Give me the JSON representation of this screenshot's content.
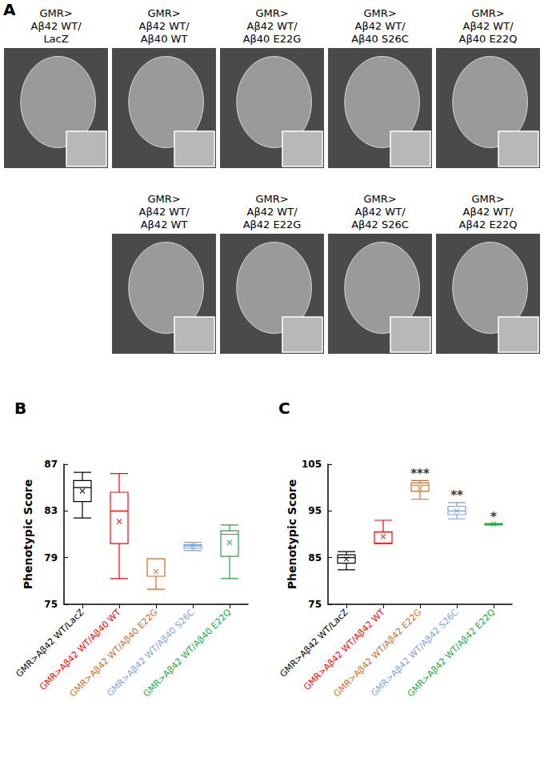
{
  "images": {
    "panel_label": "A",
    "rows": [
      [
        [
          "GMR>",
          "Aβ42 WT/",
          "LacZ"
        ],
        [
          "GMR>",
          "Aβ42 WT/",
          "Aβ40 WT"
        ],
        [
          "GMR>",
          "Aβ42 WT/",
          "Aβ40 E22G"
        ],
        [
          "GMR>",
          "Aβ42 WT/",
          "Aβ40 S26C"
        ],
        [
          "GMR>",
          "Aβ42 WT/",
          "Aβ40 E22Q"
        ]
      ],
      [
        [
          "GMR>",
          "Aβ42 WT/",
          "Aβ42 WT"
        ],
        [
          "GMR>",
          "Aβ42 WT/",
          "Aβ42 E22G"
        ],
        [
          "GMR>",
          "Aβ42 WT/",
          "Aβ42 S26C"
        ],
        [
          "GMR>",
          "Aβ42 WT/",
          "Aβ42 E22Q"
        ]
      ]
    ]
  },
  "chart_data": [
    {
      "type": "boxplot",
      "panel_label": "B",
      "ylabel": "Phenotypic Score",
      "categories": [
        "GMR>Aβ42 WT/LacZ",
        "GMR>Aβ42 WT/Aβ40 WT",
        "GMR>Aβ42 WT/Aβ40 E22G",
        "GMR>Aβ42 WT/Aβ40 S26C",
        "GMR>Aβ42 WT/Aβ40 E22Q"
      ],
      "colors": [
        "#000000",
        "#ff0000",
        "#d2691e",
        "#7f9fd8",
        "#1aaa3a"
      ],
      "min": [
        82.4,
        77.2,
        76.3,
        79.6,
        77.2
      ],
      "q1": [
        83.8,
        80.2,
        77.4,
        79.8,
        79.1
      ],
      "median": [
        85.0,
        83.0,
        78.9,
        80.0,
        81.0
      ],
      "q3": [
        85.6,
        84.6,
        78.9,
        80.1,
        81.3
      ],
      "max": [
        86.3,
        86.2,
        78.9,
        80.3,
        81.8
      ],
      "mean": [
        84.7,
        82.1,
        77.8,
        80.0,
        80.3
      ],
      "ylim": [
        75,
        87
      ],
      "yticks": [
        75,
        79,
        83,
        87
      ]
    },
    {
      "type": "boxplot",
      "panel_label": "C",
      "ylabel": "Phenotypic Score",
      "categories": [
        "GMR>Aβ42 WT/LacZ",
        "GMR>Aβ42 WT/Aβ42 WT",
        "GMR>Aβ42 WT/Aβ42 E22G",
        "GMR>Aβ42 WT/Aβ42 S26C",
        "GMR>Aβ42 WT/Aβ42 E22Q"
      ],
      "colors": [
        "#000000",
        "#ff0000",
        "#d2691e",
        "#7f9fd8",
        "#1aaa3a"
      ],
      "min": [
        82.4,
        88.0,
        97.5,
        93.3,
        92.0
      ],
      "q1": [
        83.8,
        88.0,
        99.2,
        94.2,
        92.0
      ],
      "median": [
        85.0,
        88.1,
        100.5,
        95.0,
        92.2
      ],
      "q3": [
        85.6,
        90.5,
        101.0,
        96.0,
        92.3
      ],
      "max": [
        86.3,
        93.0,
        101.5,
        96.8,
        92.3
      ],
      "mean": [
        84.7,
        89.5,
        99.8,
        95.0,
        92.2
      ],
      "significance": [
        null,
        null,
        "***",
        "**",
        "*"
      ],
      "ylim": [
        75,
        105
      ],
      "yticks": [
        75,
        85,
        95,
        105
      ]
    }
  ]
}
